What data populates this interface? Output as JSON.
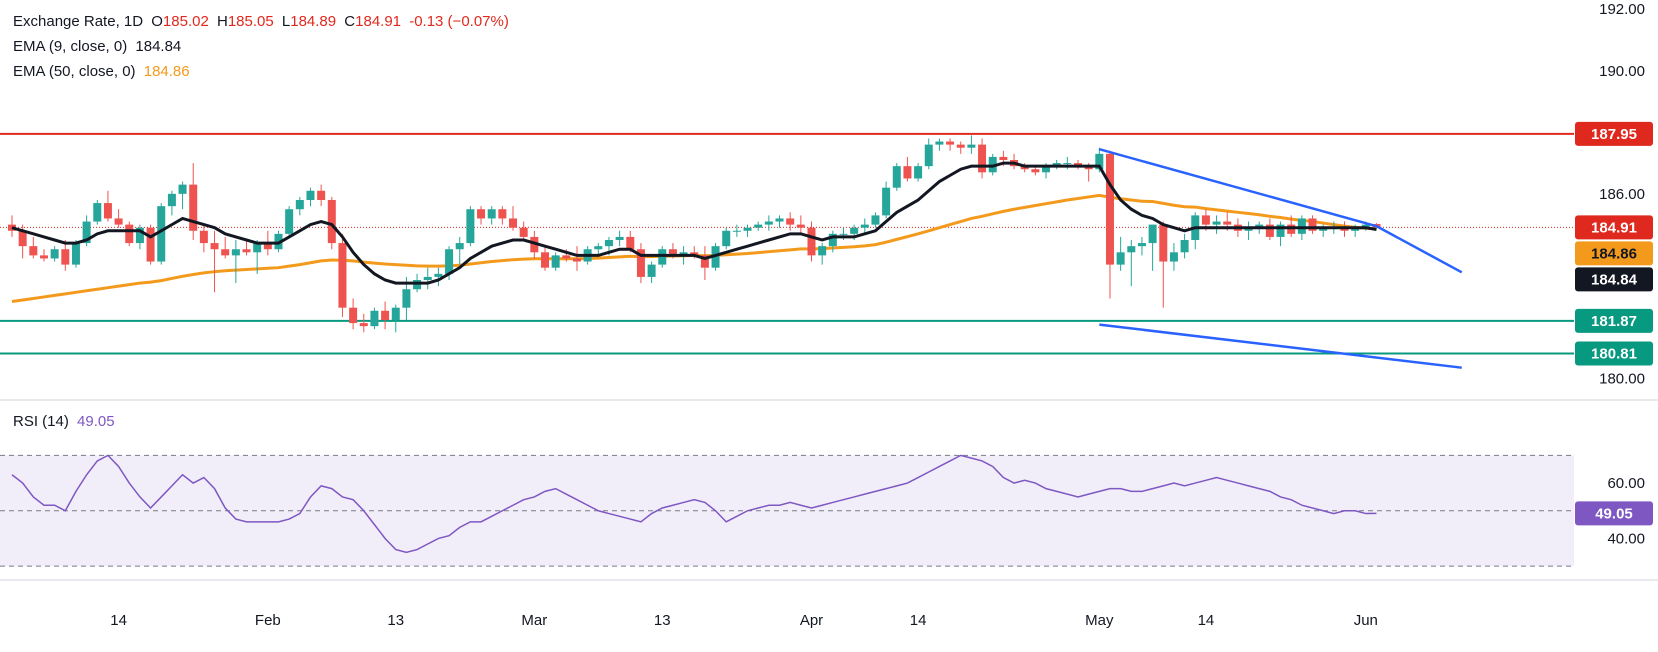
{
  "legend": {
    "symbol": "Exchange Rate, 1D",
    "open_label": "O",
    "open": "185.02",
    "high_label": "H",
    "high": "185.05",
    "low_label": "L",
    "low": "184.89",
    "close_label": "C",
    "close": "184.91",
    "change": "-0.13 (−0.07%)",
    "ema9_label": "EMA (9, close, 0)",
    "ema9_value": "184.84",
    "ema50_label": "EMA (50, close, 0)",
    "ema50_value": "184.86",
    "rsi_label": "RSI (14)",
    "rsi_value": "49.05"
  },
  "colors": {
    "up": "#26a69a",
    "down": "#ef5350",
    "ema9": "#131722",
    "ema50": "#f39a1c",
    "resistance": "#e0291e",
    "support": "#089981",
    "channel": "#2962ff",
    "rsi": "#7e57c2"
  },
  "chart_data": [
    {
      "type": "candlestick",
      "title": "Exchange Rate, 1D",
      "ylim": [
        179.3,
        192.3
      ],
      "yticks": [
        180.0,
        186.0,
        190.0,
        192.0
      ],
      "x_ticks": [
        {
          "label": "14",
          "i": 10
        },
        {
          "label": "Feb",
          "i": 24
        },
        {
          "label": "13",
          "i": 36
        },
        {
          "label": "Mar",
          "i": 49
        },
        {
          "label": "13",
          "i": 61
        },
        {
          "label": "Apr",
          "i": 75
        },
        {
          "label": "14",
          "i": 85
        },
        {
          "label": "May",
          "i": 102
        },
        {
          "label": "14",
          "i": 112
        },
        {
          "label": "Jun",
          "i": 127
        }
      ],
      "candles": [
        [
          185.0,
          185.3,
          184.6,
          184.8
        ],
        [
          184.8,
          185.0,
          183.9,
          184.3
        ],
        [
          184.3,
          184.6,
          183.9,
          184.0
        ],
        [
          184.0,
          184.2,
          183.8,
          183.9
        ],
        [
          183.9,
          184.3,
          183.8,
          184.2
        ],
        [
          184.2,
          184.5,
          183.5,
          183.7
        ],
        [
          183.7,
          184.5,
          183.6,
          184.4
        ],
        [
          184.4,
          185.3,
          184.3,
          185.1
        ],
        [
          185.1,
          185.8,
          185.0,
          185.7
        ],
        [
          185.7,
          186.1,
          185.1,
          185.2
        ],
        [
          185.2,
          185.5,
          184.9,
          185.0
        ],
        [
          185.0,
          185.1,
          184.3,
          184.4
        ],
        [
          184.4,
          185.0,
          184.2,
          184.9
        ],
        [
          184.9,
          185.0,
          183.7,
          183.8
        ],
        [
          183.8,
          185.7,
          183.7,
          185.6
        ],
        [
          185.6,
          186.1,
          185.3,
          186.0
        ],
        [
          186.0,
          186.4,
          185.5,
          186.3
        ],
        [
          186.3,
          187.0,
          184.5,
          184.8
        ],
        [
          184.8,
          185.0,
          184.1,
          184.4
        ],
        [
          184.4,
          184.8,
          182.8,
          184.2
        ],
        [
          184.2,
          184.6,
          183.9,
          184.0
        ],
        [
          184.0,
          184.5,
          183.1,
          184.2
        ],
        [
          184.2,
          184.5,
          184.0,
          184.1
        ],
        [
          184.1,
          184.5,
          183.4,
          184.4
        ],
        [
          184.4,
          184.8,
          184.0,
          184.2
        ],
        [
          184.2,
          184.8,
          184.1,
          184.7
        ],
        [
          184.7,
          185.6,
          184.6,
          185.5
        ],
        [
          185.5,
          185.9,
          185.3,
          185.8
        ],
        [
          185.8,
          186.2,
          185.6,
          186.1
        ],
        [
          186.1,
          186.3,
          185.6,
          185.8
        ],
        [
          185.8,
          185.9,
          184.2,
          184.4
        ],
        [
          184.4,
          184.7,
          182.0,
          182.3
        ],
        [
          182.3,
          182.6,
          181.6,
          181.8
        ],
        [
          181.8,
          182.1,
          181.5,
          181.7
        ],
        [
          181.7,
          182.3,
          181.6,
          182.2
        ],
        [
          182.2,
          182.5,
          181.6,
          181.9
        ],
        [
          181.9,
          182.4,
          181.5,
          182.3
        ],
        [
          182.3,
          183.3,
          181.9,
          182.9
        ],
        [
          182.9,
          183.4,
          182.8,
          183.2
        ],
        [
          183.2,
          183.6,
          182.9,
          183.3
        ],
        [
          183.3,
          183.6,
          183.0,
          183.4
        ],
        [
          183.4,
          184.3,
          183.2,
          184.2
        ],
        [
          184.2,
          184.6,
          183.7,
          184.4
        ],
        [
          184.4,
          185.6,
          184.3,
          185.5
        ],
        [
          185.5,
          185.6,
          185.0,
          185.2
        ],
        [
          185.2,
          185.6,
          185.0,
          185.5
        ],
        [
          185.5,
          185.6,
          185.0,
          185.2
        ],
        [
          185.2,
          185.6,
          184.8,
          184.9
        ],
        [
          184.9,
          185.1,
          184.5,
          184.6
        ],
        [
          184.6,
          184.8,
          183.9,
          184.1
        ],
        [
          184.1,
          184.3,
          183.5,
          183.6
        ],
        [
          183.6,
          184.1,
          183.5,
          184.0
        ],
        [
          184.0,
          184.2,
          183.8,
          183.9
        ],
        [
          183.9,
          184.3,
          183.5,
          183.8
        ],
        [
          183.8,
          184.3,
          183.7,
          184.2
        ],
        [
          184.2,
          184.4,
          184.0,
          184.3
        ],
        [
          184.3,
          184.6,
          184.0,
          184.5
        ],
        [
          184.5,
          184.8,
          184.3,
          184.6
        ],
        [
          184.6,
          184.8,
          184.1,
          184.2
        ],
        [
          184.2,
          184.4,
          183.1,
          183.3
        ],
        [
          183.3,
          183.8,
          183.1,
          183.7
        ],
        [
          183.7,
          184.3,
          183.6,
          184.2
        ],
        [
          184.2,
          184.4,
          183.9,
          184.0
        ],
        [
          184.0,
          184.3,
          183.7,
          184.1
        ],
        [
          184.1,
          184.3,
          183.9,
          184.0
        ],
        [
          184.0,
          184.3,
          183.2,
          183.6
        ],
        [
          183.6,
          184.4,
          183.5,
          184.3
        ],
        [
          184.3,
          184.9,
          184.2,
          184.8
        ],
        [
          184.8,
          185.0,
          184.6,
          184.8
        ],
        [
          184.8,
          185.0,
          184.6,
          184.9
        ],
        [
          184.9,
          185.1,
          184.8,
          185.0
        ],
        [
          185.0,
          185.3,
          184.8,
          185.1
        ],
        [
          185.1,
          185.3,
          184.9,
          185.2
        ],
        [
          185.2,
          185.4,
          184.8,
          185.0
        ],
        [
          185.0,
          185.3,
          184.7,
          184.9
        ],
        [
          184.9,
          185.1,
          183.8,
          184.0
        ],
        [
          184.0,
          184.4,
          183.7,
          184.3
        ],
        [
          184.3,
          184.8,
          184.1,
          184.7
        ],
        [
          184.7,
          184.9,
          184.5,
          184.7
        ],
        [
          184.7,
          185.0,
          184.5,
          184.9
        ],
        [
          184.9,
          185.2,
          184.7,
          185.0
        ],
        [
          185.0,
          185.4,
          184.9,
          185.3
        ],
        [
          185.3,
          186.4,
          185.2,
          186.2
        ],
        [
          186.2,
          187.0,
          186.1,
          186.9
        ],
        [
          186.9,
          187.2,
          186.4,
          186.5
        ],
        [
          186.5,
          187.0,
          186.4,
          186.9
        ],
        [
          186.9,
          187.8,
          186.8,
          187.6
        ],
        [
          187.6,
          187.8,
          187.4,
          187.7
        ],
        [
          187.7,
          187.8,
          187.4,
          187.6
        ],
        [
          187.6,
          187.7,
          187.3,
          187.5
        ],
        [
          187.5,
          187.9,
          187.3,
          187.6
        ],
        [
          187.6,
          187.8,
          186.5,
          186.7
        ],
        [
          186.7,
          187.3,
          186.6,
          187.2
        ],
        [
          187.2,
          187.4,
          186.9,
          187.1
        ],
        [
          187.1,
          187.3,
          186.8,
          186.9
        ],
        [
          186.9,
          187.0,
          186.7,
          186.8
        ],
        [
          186.8,
          186.9,
          186.6,
          186.7
        ],
        [
          186.7,
          187.0,
          186.5,
          186.9
        ],
        [
          186.9,
          187.1,
          186.8,
          187.0
        ],
        [
          187.0,
          187.2,
          186.8,
          187.0
        ],
        [
          187.0,
          187.1,
          186.8,
          186.9
        ],
        [
          186.9,
          187.0,
          186.4,
          186.8
        ],
        [
          186.8,
          187.5,
          186.7,
          187.3
        ],
        [
          187.3,
          187.4,
          182.6,
          183.7
        ],
        [
          183.7,
          184.6,
          183.5,
          184.1
        ],
        [
          184.1,
          184.5,
          183.0,
          184.3
        ],
        [
          184.3,
          184.6,
          184.0,
          184.4
        ],
        [
          184.4,
          185.0,
          183.5,
          185.0
        ],
        [
          185.0,
          185.1,
          182.3,
          183.8
        ],
        [
          183.8,
          184.4,
          183.5,
          184.1
        ],
        [
          184.1,
          184.7,
          183.9,
          184.5
        ],
        [
          184.5,
          185.4,
          184.2,
          185.3
        ],
        [
          185.3,
          185.5,
          184.8,
          185.0
        ],
        [
          185.0,
          185.3,
          184.7,
          185.1
        ],
        [
          185.1,
          185.4,
          184.8,
          185.0
        ],
        [
          185.0,
          185.2,
          184.6,
          184.8
        ],
        [
          184.8,
          185.1,
          184.5,
          184.9
        ],
        [
          184.9,
          185.1,
          184.7,
          185.0
        ],
        [
          185.0,
          185.2,
          184.5,
          184.6
        ],
        [
          184.6,
          185.1,
          184.3,
          185.0
        ],
        [
          185.0,
          185.3,
          184.6,
          184.7
        ],
        [
          184.7,
          185.3,
          184.5,
          185.2
        ],
        [
          185.2,
          185.3,
          184.7,
          184.8
        ],
        [
          184.8,
          185.0,
          184.6,
          184.9
        ],
        [
          184.9,
          185.1,
          184.7,
          184.9
        ],
        [
          184.9,
          185.1,
          184.6,
          184.8
        ],
        [
          184.8,
          185.0,
          184.6,
          184.9
        ],
        [
          184.9,
          185.1,
          184.8,
          185.0
        ],
        [
          185.02,
          185.05,
          184.89,
          184.91
        ]
      ],
      "ema9": [
        184.9,
        184.8,
        184.7,
        184.6,
        184.5,
        184.4,
        184.4,
        184.5,
        184.7,
        184.8,
        184.8,
        184.8,
        184.8,
        184.6,
        184.8,
        185.0,
        185.2,
        185.1,
        185.0,
        184.9,
        184.7,
        184.6,
        184.5,
        184.4,
        184.4,
        184.4,
        184.6,
        184.8,
        185.0,
        185.1,
        185.0,
        184.6,
        184.1,
        183.7,
        183.4,
        183.2,
        183.1,
        183.1,
        183.1,
        183.1,
        183.2,
        183.4,
        183.6,
        183.9,
        184.1,
        184.3,
        184.4,
        184.5,
        184.5,
        184.4,
        184.3,
        184.2,
        184.1,
        184.0,
        184.0,
        184.0,
        184.1,
        184.2,
        184.2,
        184.0,
        184.0,
        184.0,
        184.0,
        184.0,
        184.0,
        183.9,
        184.0,
        184.1,
        184.2,
        184.3,
        184.4,
        184.5,
        184.6,
        184.7,
        184.7,
        184.6,
        184.5,
        184.6,
        184.6,
        184.6,
        184.7,
        184.8,
        185.1,
        185.4,
        185.6,
        185.8,
        186.1,
        186.4,
        186.6,
        186.8,
        186.9,
        186.9,
        186.9,
        187.0,
        187.0,
        186.9,
        186.9,
        186.9,
        186.9,
        186.9,
        186.9,
        186.9,
        186.9,
        186.3,
        185.8,
        185.5,
        185.3,
        185.2,
        185.0,
        184.9,
        184.8,
        184.9,
        184.9,
        184.9,
        184.9,
        184.9,
        184.9,
        184.9,
        184.9,
        184.9,
        184.9,
        184.9,
        184.9,
        184.9,
        184.9,
        184.9,
        184.9,
        184.9,
        184.84
      ],
      "ema50": [
        182.5,
        182.55,
        182.6,
        182.65,
        182.7,
        182.75,
        182.8,
        182.85,
        182.9,
        182.95,
        183.0,
        183.05,
        183.1,
        183.13,
        183.18,
        183.25,
        183.32,
        183.38,
        183.43,
        183.47,
        183.5,
        183.52,
        183.54,
        183.56,
        183.58,
        183.6,
        183.65,
        183.7,
        183.76,
        183.82,
        183.85,
        183.84,
        183.82,
        183.78,
        183.75,
        183.72,
        183.7,
        183.68,
        183.66,
        183.65,
        183.65,
        183.66,
        183.68,
        183.72,
        183.76,
        183.8,
        183.83,
        183.86,
        183.88,
        183.89,
        183.89,
        183.89,
        183.89,
        183.89,
        183.9,
        183.91,
        183.93,
        183.95,
        183.97,
        183.96,
        183.96,
        183.97,
        183.98,
        183.99,
        184.0,
        183.99,
        184.0,
        184.02,
        184.04,
        184.06,
        184.09,
        184.12,
        184.15,
        184.18,
        184.21,
        184.21,
        184.22,
        184.24,
        184.26,
        184.28,
        184.31,
        184.35,
        184.43,
        184.52,
        184.61,
        184.7,
        184.8,
        184.9,
        185.0,
        185.1,
        185.2,
        185.27,
        185.35,
        185.43,
        185.5,
        185.56,
        185.62,
        185.68,
        185.74,
        185.8,
        185.85,
        185.9,
        185.95,
        185.89,
        185.84,
        185.8,
        185.76,
        185.75,
        185.69,
        185.63,
        185.58,
        185.57,
        185.52,
        185.48,
        185.44,
        185.4,
        185.36,
        185.32,
        185.27,
        185.23,
        185.18,
        185.14,
        185.1,
        185.05,
        185.0,
        184.95,
        184.91,
        184.88,
        184.86
      ],
      "levels": [
        {
          "value": 187.95,
          "label": "187.95",
          "role": "resistance"
        },
        {
          "value": 181.87,
          "label": "181.87",
          "role": "support"
        },
        {
          "value": 180.81,
          "label": "180.81",
          "role": "support"
        }
      ],
      "channel": {
        "upper": [
          [
            102,
            187.45
          ],
          [
            128,
            184.95
          ]
        ],
        "lower": [
          [
            102,
            181.75
          ],
          [
            136,
            180.35
          ]
        ],
        "upper_extension": [
          [
            128,
            184.95
          ],
          [
            136,
            183.45
          ]
        ]
      },
      "current_price": {
        "value": 184.91,
        "label": "184.91"
      },
      "ema50_tag": {
        "value": 184.86,
        "label": "184.86"
      },
      "ema9_tag": {
        "value": 184.84,
        "label": "184.84"
      }
    },
    {
      "type": "line",
      "title": "RSI (14)",
      "ylim": [
        25,
        90
      ],
      "yticks": [
        40.0,
        60.0
      ],
      "band": [
        30,
        70
      ],
      "midline": 50,
      "values": [
        63,
        60,
        55,
        52,
        52,
        50,
        57,
        63,
        68,
        70,
        66,
        60,
        55,
        51,
        55,
        59,
        63,
        60,
        62,
        58,
        51,
        47,
        46,
        46,
        46,
        46,
        47,
        49,
        55,
        59,
        58,
        55,
        54,
        50,
        45,
        40,
        36,
        35,
        36,
        38,
        40,
        41,
        44,
        46,
        46,
        48,
        50,
        52,
        54,
        55,
        57,
        58,
        56,
        54,
        52,
        50,
        49,
        48,
        47,
        46,
        49,
        51,
        52,
        53,
        54,
        53,
        50,
        46,
        48,
        50,
        51,
        52,
        52,
        53,
        52,
        51,
        52,
        53,
        54,
        55,
        56,
        57,
        58,
        59,
        60,
        62,
        64,
        66,
        68,
        70,
        69,
        68,
        66,
        62,
        60,
        61,
        60,
        58,
        57,
        56,
        55,
        56,
        57,
        58,
        58,
        57,
        57,
        58,
        59,
        60,
        59,
        60,
        61,
        62,
        61,
        60,
        59,
        58,
        57,
        55,
        54,
        52,
        51,
        50,
        49,
        50,
        50,
        49,
        49.05
      ],
      "value_label": "49.05"
    }
  ]
}
